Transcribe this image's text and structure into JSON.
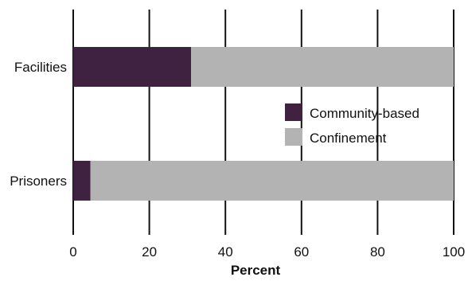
{
  "chart_data": {
    "type": "bar",
    "orientation": "horizontal",
    "stacked": true,
    "categories": [
      "Facilities",
      "Prisoners"
    ],
    "series": [
      {
        "name": "Community-based",
        "values": [
          31,
          4.5
        ],
        "color": "#3e2240"
      },
      {
        "name": "Confinement",
        "values": [
          69,
          95.5
        ],
        "color": "#b3b3b3"
      }
    ],
    "xlabel": "Percent",
    "ylabel": "",
    "title": "",
    "xlim": [
      0,
      100
    ],
    "xticks": [
      "0",
      "20",
      "40",
      "60",
      "80",
      "100"
    ],
    "grid": "vertical",
    "legend_position": "center-right"
  }
}
